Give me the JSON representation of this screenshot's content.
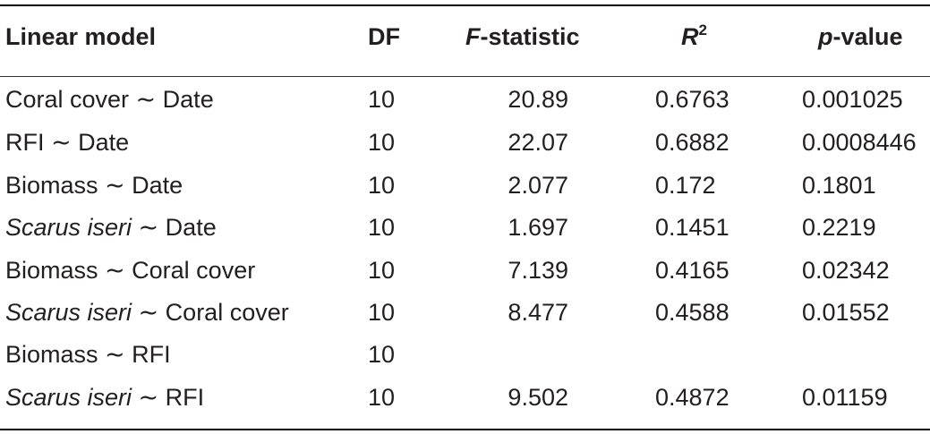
{
  "headers": {
    "model": "Linear model",
    "df": "DF",
    "f_italic": "F",
    "f_rest": "-statistic",
    "r_italic": "R",
    "r_sup": "2",
    "p_italic": "p",
    "p_rest": "-value"
  },
  "rows": [
    {
      "species": "",
      "model": "Coral cover ∼ Date",
      "df": "10",
      "f": "20.89",
      "r2": "0.6763",
      "p": "0.001025"
    },
    {
      "species": "",
      "model": "RFI ∼ Date",
      "df": "10",
      "f": "22.07",
      "r2": "0.6882",
      "p": "0.0008446"
    },
    {
      "species": "",
      "model": "Biomass ∼ Date",
      "df": "10",
      "f": "2.077",
      "r2": "0.172",
      "p": "0.1801"
    },
    {
      "species": "Scarus iseri",
      "model": " ∼ Date",
      "df": "10",
      "f": "1.697",
      "r2": "0.1451",
      "p": "0.2219"
    },
    {
      "species": "",
      "model": "Biomass ∼ Coral cover",
      "df": "10",
      "f": "7.139",
      "r2": "0.4165",
      "p": "0.02342"
    },
    {
      "species": "Scarus iseri",
      "model": " ∼ Coral cover",
      "df": "10",
      "f": "8.477",
      "r2": "0.4588",
      "p": "0.01552"
    },
    {
      "species": "",
      "model": "Biomass ∼ RFI",
      "df": "10",
      "f": "",
      "r2": "",
      "p": ""
    },
    {
      "species": "Scarus iseri",
      "model": " ∼ RFI",
      "df": "10",
      "f": "9.502",
      "r2": "0.4872",
      "p": "0.01159"
    }
  ]
}
